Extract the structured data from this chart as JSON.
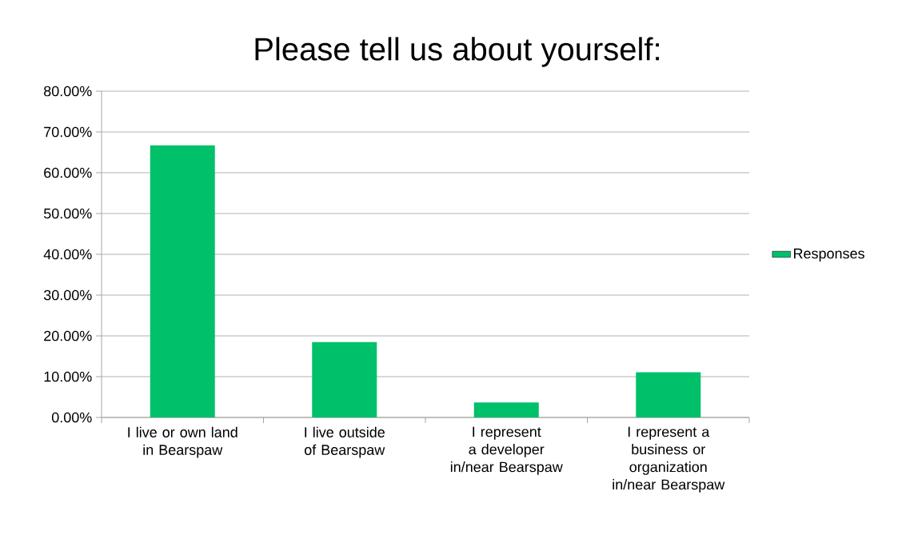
{
  "chart_data": {
    "type": "bar",
    "title": "Please tell us about yourself:",
    "categories": [
      "I live or own land in Bearspaw",
      "I live outside of Bearspaw",
      "I represent a developer in/near Bearspaw",
      "I represent a business or organization in/near Bearspaw"
    ],
    "series": [
      {
        "name": "Responses",
        "color": "#00c06a",
        "values": [
          66.7,
          18.5,
          3.7,
          11.1
        ]
      }
    ],
    "ylim": [
      0,
      80
    ],
    "yticks": [
      {
        "value": 0,
        "label": "0.00%"
      },
      {
        "value": 10,
        "label": "10.00%"
      },
      {
        "value": 20,
        "label": "20.00%"
      },
      {
        "value": 30,
        "label": "30.00%"
      },
      {
        "value": 40,
        "label": "40.00%"
      },
      {
        "value": 50,
        "label": "50.00%"
      },
      {
        "value": 60,
        "label": "60.00%"
      },
      {
        "value": 70,
        "label": "70.00%"
      },
      {
        "value": 80,
        "label": "80.00%"
      }
    ],
    "grid": "y",
    "legend": "right"
  }
}
